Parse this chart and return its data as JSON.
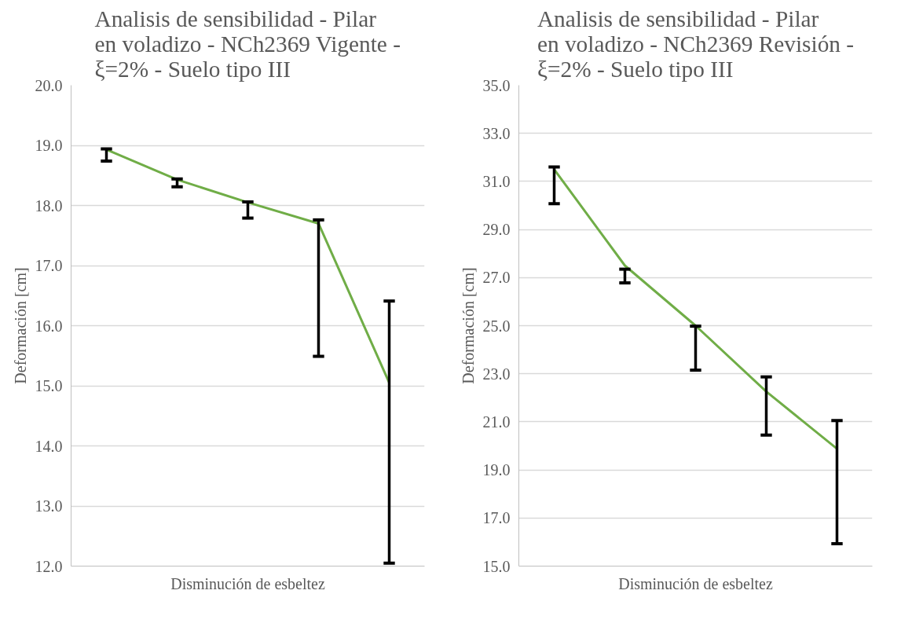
{
  "chart_data": [
    {
      "type": "line",
      "title": "Analisis de sensibilidad - Pilar en voladizo - NCh2369 Vigente - ξ=2% - Suelo tipo III",
      "xlabel": "Disminución de esbeltez",
      "ylabel": "Deformación [cm]",
      "categories": [
        null,
        null,
        null,
        null,
        null
      ],
      "series": [
        {
          "color": "#70ad47",
          "values": [
            18.93,
            18.43,
            18.05,
            17.7,
            15.05
          ],
          "errors": [
            [
              18.74,
              18.94
            ],
            [
              18.31,
              18.44
            ],
            [
              17.79,
              18.06
            ],
            [
              15.49,
              17.76
            ],
            [
              12.05,
              16.41
            ]
          ]
        }
      ],
      "ylim": [
        12,
        20
      ],
      "yticks": [
        {
          "value": 12,
          "label": "12.0"
        },
        {
          "value": 13,
          "label": "13.0"
        },
        {
          "value": 14,
          "label": "14.0"
        },
        {
          "value": 15,
          "label": "15.0"
        },
        {
          "value": 16,
          "label": "16.0"
        },
        {
          "value": 17,
          "label": "17.0"
        },
        {
          "value": 18,
          "label": "18.0"
        },
        {
          "value": 19,
          "label": "19.0"
        },
        {
          "value": 20,
          "label": "20.0"
        }
      ],
      "grid": "y",
      "tick_labels": "y",
      "marker": "none",
      "line_style": "solid"
    },
    {
      "type": "line",
      "title": "Analisis de sensibilidad - Pilar en voladizo - NCh2369 Revisión - ξ=2% - Suelo tipo III",
      "xlabel": "Disminución de esbeltez",
      "ylabel": "Deformación [cm]",
      "categories": [
        null,
        null,
        null,
        null,
        null
      ],
      "series": [
        {
          "color": "#70ad47",
          "values": [
            31.5,
            27.5,
            25.0,
            22.26,
            19.88
          ],
          "errors": [
            [
              30.07,
              31.6
            ],
            [
              26.78,
              27.35
            ],
            [
              23.15,
              24.98
            ],
            [
              20.45,
              22.87
            ],
            [
              15.93,
              21.05
            ]
          ]
        }
      ],
      "ylim": [
        15,
        35
      ],
      "yticks": [
        {
          "value": 15,
          "label": "15.0"
        },
        {
          "value": 17,
          "label": "17.0"
        },
        {
          "value": 19,
          "label": "19.0"
        },
        {
          "value": 21,
          "label": "21.0"
        },
        {
          "value": 23,
          "label": "23.0"
        },
        {
          "value": 25,
          "label": "25.0"
        },
        {
          "value": 27,
          "label": "27.0"
        },
        {
          "value": 29,
          "label": "29.0"
        },
        {
          "value": 31,
          "label": "31.0"
        },
        {
          "value": 33,
          "label": "33.0"
        },
        {
          "value": 35,
          "label": "35.0"
        }
      ],
      "grid": "y",
      "tick_labels": "y",
      "marker": "none",
      "line_style": "solid"
    }
  ]
}
